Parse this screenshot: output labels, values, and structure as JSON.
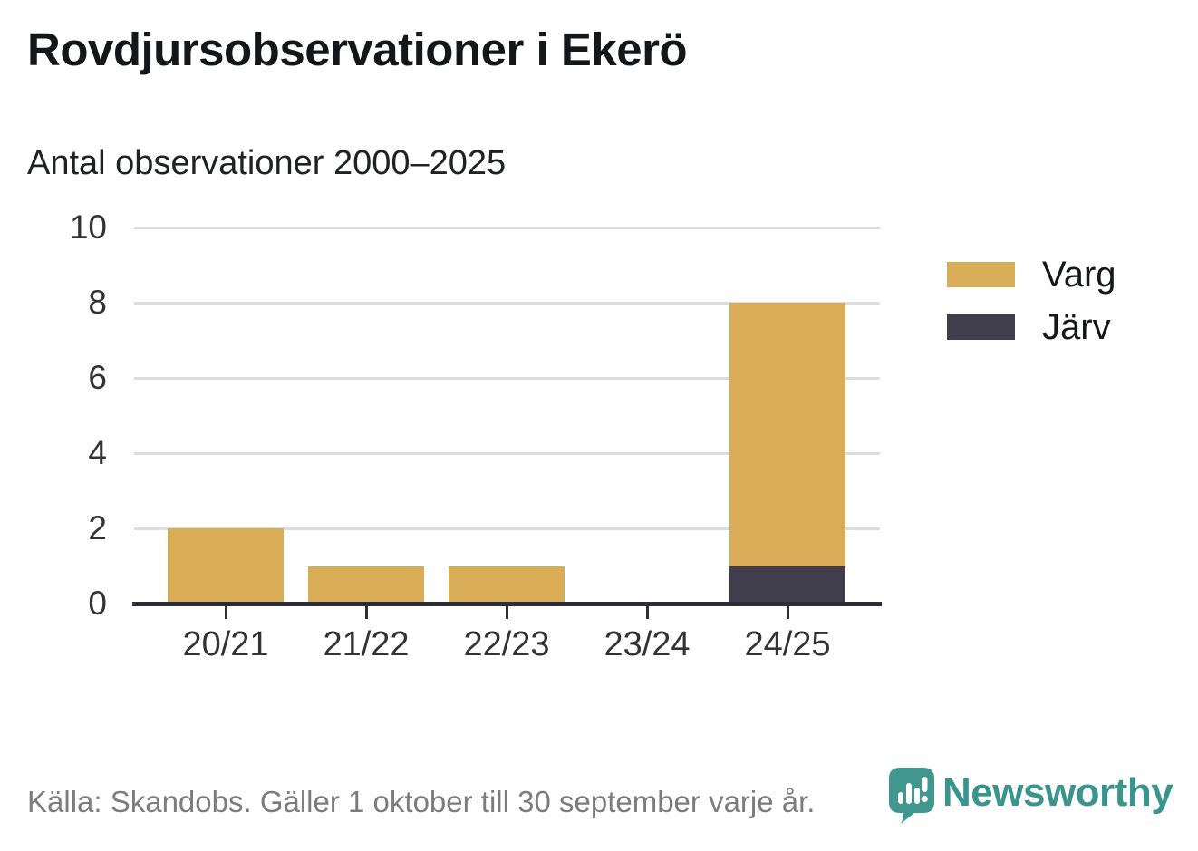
{
  "header": {
    "title": "Rovdjursobservationer i Ekerö",
    "subtitle": "Antal observationer 2000–2025"
  },
  "chart_data": {
    "type": "bar",
    "stacked": true,
    "title": "Rovdjursobservationer i Ekerö",
    "subtitle": "Antal observationer 2000–2025",
    "categories": [
      "20/21",
      "21/22",
      "22/23",
      "23/24",
      "24/25"
    ],
    "series": [
      {
        "name": "Varg",
        "color": "#d9ac58",
        "values": [
          2,
          1,
          1,
          0,
          7
        ]
      },
      {
        "name": "Järv",
        "color": "#403e4c",
        "values": [
          0,
          0,
          0,
          0,
          1
        ]
      }
    ],
    "stack_totals": [
      2,
      1,
      1,
      0,
      8
    ],
    "xlabel": "",
    "ylabel": "",
    "ylim": [
      0,
      10
    ],
    "yticks": [
      0,
      2,
      4,
      6,
      8,
      10
    ],
    "grid": "horizontal-light",
    "legend_position": "right",
    "stack_note": "Järv drawn at bottom of stack, Varg on top"
  },
  "footer": {
    "source": "Källa: Skandobs. Gäller 1 oktober till 30 september varje år.",
    "brand": "Newsworthy"
  },
  "colors": {
    "varg": "#d9ac58",
    "jarv": "#403e4c",
    "axis": "#2f2e37",
    "gridline": "#dcdcdc",
    "title_text": "#14161a",
    "tick_text": "#333333",
    "source_text": "#7c7c7c",
    "brand_teal": "#38948d"
  }
}
